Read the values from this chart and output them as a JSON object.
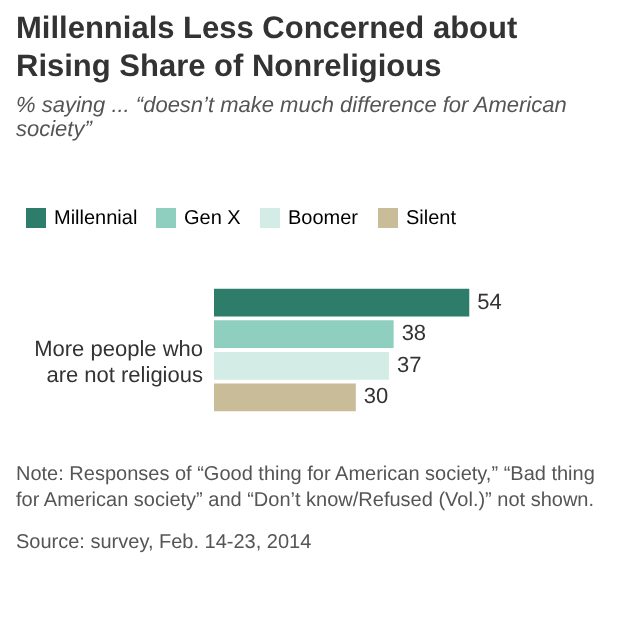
{
  "chart_data": {
    "type": "bar",
    "orientation": "horizontal",
    "title": "Millennials Less Concerned about Rising Share of Nonreligious",
    "subtitle": "% saying ... “doesn’t make much difference for American society”",
    "categories": [
      "More people who are not religious"
    ],
    "series": [
      {
        "name": "Millennial",
        "color": "#2e7d6b",
        "values": [
          54
        ]
      },
      {
        "name": "Gen X",
        "color": "#8fcfbf",
        "values": [
          38
        ]
      },
      {
        "name": "Boomer",
        "color": "#d3ede6",
        "values": [
          37
        ]
      },
      {
        "name": "Silent",
        "color": "#c9bc98",
        "values": [
          30
        ]
      }
    ],
    "data_labels": true,
    "legend": "top",
    "annotations": [
      "Note: Responses of “Good thing for American society,” “Bad thing for American society” and “Don’t know/Refused (Vol.)” not shown.",
      "Source: survey, Feb. 14-23, 2014"
    ]
  }
}
